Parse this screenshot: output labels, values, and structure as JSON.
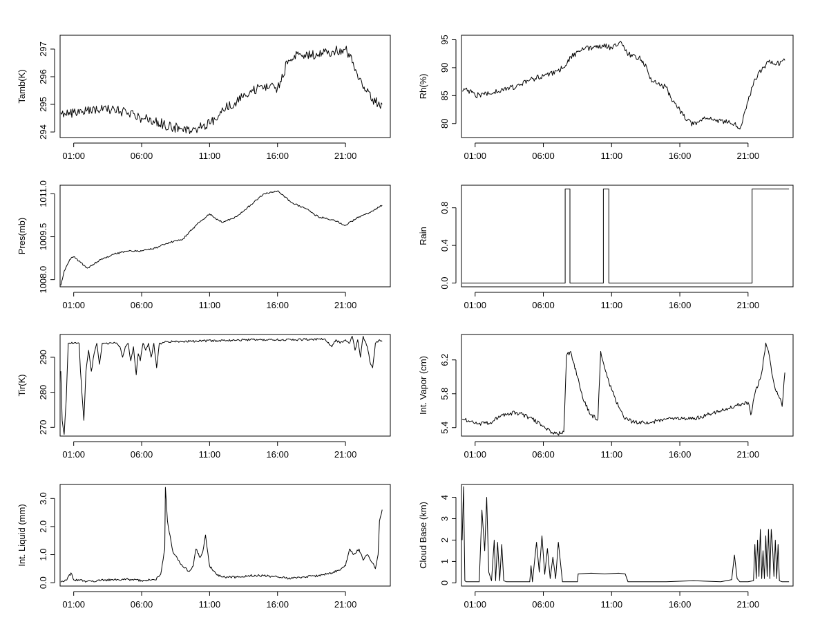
{
  "figure": {
    "background": "#ffffff",
    "line_color": "#000000"
  },
  "chart_data": [
    {
      "id": "tamb",
      "type": "line",
      "ylabel": "Tamb(K)",
      "xlabel": "",
      "yticks": [
        "294",
        "295",
        "296",
        "297"
      ],
      "ylim": [
        293.8,
        297.5
      ],
      "xticks": [
        "01:00",
        "06:00",
        "11:00",
        "16:00",
        "21:00"
      ],
      "xlim": [
        0,
        24.3
      ],
      "noise": 0.18,
      "seed": 3,
      "series": [
        {
          "name": "Tamb",
          "x": [
            0.05,
            1,
            2,
            3,
            4,
            5,
            6,
            7,
            8,
            9,
            10,
            11,
            12,
            13,
            14,
            15,
            16,
            16.8,
            17.5,
            18,
            19,
            20,
            21,
            21.5,
            22,
            22.5,
            23,
            23.4,
            23.7
          ],
          "y": [
            294.7,
            294.7,
            294.8,
            294.8,
            294.8,
            294.7,
            294.5,
            294.4,
            294.2,
            294.1,
            294.1,
            294.3,
            294.8,
            295.1,
            295.5,
            295.6,
            295.6,
            296.6,
            296.9,
            296.8,
            296.8,
            296.9,
            297.0,
            296.5,
            295.9,
            295.5,
            295.2,
            295.0,
            295.0
          ]
        }
      ]
    },
    {
      "id": "rh",
      "type": "line",
      "ylabel": "Rh(%)",
      "xlabel": "",
      "yticks": [
        "80",
        "85",
        "90",
        "95"
      ],
      "ylim": [
        77.5,
        95.8
      ],
      "xticks": [
        "01:00",
        "06:00",
        "11:00",
        "16:00",
        "21:00"
      ],
      "xlim": [
        0,
        24.3
      ],
      "noise": 0.5,
      "seed": 7,
      "series": [
        {
          "name": "Rh",
          "x": [
            0.05,
            0.5,
            1,
            2,
            3,
            4,
            5,
            6,
            7,
            7.5,
            8,
            9,
            10,
            11,
            11.6,
            12,
            12.5,
            13,
            13.3,
            14,
            15,
            15.5,
            16,
            16.5,
            17,
            18,
            19,
            20,
            20.4,
            21,
            21.5,
            22,
            22.5,
            23,
            23.5,
            23.7
          ],
          "y": [
            85.8,
            86.0,
            85.0,
            85.3,
            86.2,
            86.5,
            87.8,
            88.5,
            89.4,
            90.0,
            92.0,
            93.3,
            94.0,
            93.6,
            94.6,
            93.0,
            92.0,
            91.8,
            91.2,
            87.5,
            86.5,
            84.0,
            82.5,
            80.5,
            79.8,
            81.0,
            80.5,
            80.0,
            79.0,
            84.0,
            88.0,
            89.5,
            91.0,
            90.5,
            91.2,
            91.3
          ]
        }
      ]
    },
    {
      "id": "pres",
      "type": "line",
      "ylabel": "Pres(mb)",
      "xlabel": "",
      "yticks": [
        "1008.0",
        "1009.5",
        "1011.0"
      ],
      "ylim": [
        1007.75,
        1011.3
      ],
      "xticks": [
        "01:00",
        "06:00",
        "11:00",
        "16:00",
        "21:00"
      ],
      "xlim": [
        0,
        24.3
      ],
      "noise": 0.03,
      "seed": 11,
      "series": [
        {
          "name": "Pres",
          "x": [
            0.05,
            0.3,
            0.7,
            1,
            1.5,
            2,
            3,
            4,
            5,
            6,
            7,
            8,
            9,
            10,
            11,
            11.5,
            12,
            13,
            14,
            15,
            16,
            17,
            18,
            19,
            20,
            21,
            22,
            23,
            23.7
          ],
          "y": [
            1007.8,
            1008.3,
            1008.7,
            1008.8,
            1008.6,
            1008.4,
            1008.7,
            1008.9,
            1009.0,
            1009.0,
            1009.1,
            1009.3,
            1009.4,
            1009.9,
            1010.3,
            1010.1,
            1010.0,
            1010.2,
            1010.6,
            1011.0,
            1011.1,
            1010.7,
            1010.5,
            1010.2,
            1010.1,
            1009.9,
            1010.2,
            1010.4,
            1010.6
          ]
        }
      ]
    },
    {
      "id": "rain",
      "type": "line",
      "ylabel": "Rain",
      "xlabel": "",
      "yticks": [
        "0.0",
        "0.4",
        "0.8"
      ],
      "ylim": [
        -0.04,
        1.04
      ],
      "xticks": [
        "01:00",
        "06:00",
        "11:00",
        "16:00",
        "21:00"
      ],
      "xlim": [
        0,
        24.3
      ],
      "noise": 0,
      "seed": 1,
      "series": [
        {
          "name": "Rain",
          "x": [
            0.05,
            7.6,
            7.6,
            7.95,
            7.95,
            10.4,
            10.4,
            10.8,
            10.8,
            21.3,
            21.3,
            24.0
          ],
          "y": [
            0,
            0,
            1,
            1,
            0,
            0,
            1,
            1,
            0,
            0,
            1,
            1
          ]
        }
      ]
    },
    {
      "id": "tir",
      "type": "line",
      "ylabel": "Tir(K)",
      "xlabel": "",
      "yticks": [
        "270",
        "280",
        "290"
      ],
      "ylim": [
        267.5,
        296.5
      ],
      "xticks": [
        "01:00",
        "06:00",
        "11:00",
        "16:00",
        "21:00"
      ],
      "xlim": [
        0,
        24.3
      ],
      "noise": 0.3,
      "seed": 5,
      "series": [
        {
          "name": "Tir",
          "x": [
            0.05,
            0.15,
            0.3,
            0.45,
            0.6,
            1.4,
            1.5,
            1.6,
            1.75,
            1.9,
            2.1,
            2.3,
            2.5,
            2.7,
            2.9,
            3.1,
            3.3,
            3.6,
            4.1,
            4.4,
            4.6,
            4.8,
            5.0,
            5.2,
            5.4,
            5.6,
            5.75,
            5.9,
            6.1,
            6.3,
            6.5,
            6.7,
            6.9,
            7.1,
            7.3,
            7.5,
            7.8,
            9,
            12,
            14,
            17,
            19.5,
            20.0,
            20.3,
            20.6,
            21.0,
            21.3,
            21.5,
            21.7,
            21.9,
            22.1,
            22.3,
            22.6,
            22.85,
            23.0,
            23.2,
            23.5,
            23.7
          ],
          "y": [
            286,
            272,
            268,
            278,
            294,
            294,
            286,
            280,
            272,
            286,
            292,
            286,
            291,
            294,
            288,
            294,
            294,
            294,
            294,
            293,
            290,
            293,
            294,
            289,
            293,
            285,
            291,
            289,
            294,
            292,
            294,
            290,
            294,
            287,
            294,
            294,
            294.5,
            294.5,
            294.8,
            295,
            295,
            295.2,
            293,
            295,
            294,
            295,
            294,
            296,
            292,
            295,
            290,
            296,
            293,
            288,
            287,
            294,
            295,
            294.5
          ]
        }
      ]
    },
    {
      "id": "vapor",
      "type": "line",
      "ylabel": "Int. Vapor (cm)",
      "xlabel": "",
      "yticks": [
        "5.4",
        "5.8",
        "6.2"
      ],
      "ylim": [
        5.3,
        6.5
      ],
      "xticks": [
        "01:00",
        "06:00",
        "11:00",
        "16:00",
        "21:00"
      ],
      "xlim": [
        0,
        24.3
      ],
      "noise": 0.025,
      "seed": 9,
      "series": [
        {
          "name": "Int. Vapor",
          "x": [
            0.05,
            1,
            2,
            3,
            4,
            5,
            6,
            6.5,
            7,
            7.5,
            7.7,
            8.0,
            8.5,
            9,
            9.5,
            10.0,
            10.2,
            10.5,
            11.0,
            11.5,
            12,
            13,
            14,
            15,
            16,
            17,
            18,
            19,
            20,
            21,
            21.2,
            21.5,
            22,
            22.3,
            22.5,
            22.8,
            23,
            23.3,
            23.5,
            23.7
          ],
          "y": [
            5.5,
            5.45,
            5.45,
            5.55,
            5.58,
            5.52,
            5.42,
            5.36,
            5.33,
            5.35,
            6.25,
            6.3,
            6.0,
            5.7,
            5.55,
            5.5,
            6.3,
            6.1,
            5.85,
            5.65,
            5.5,
            5.45,
            5.47,
            5.5,
            5.5,
            5.5,
            5.55,
            5.6,
            5.65,
            5.7,
            5.55,
            5.8,
            6.05,
            6.4,
            6.3,
            6.0,
            5.85,
            5.75,
            5.65,
            6.05
          ]
        }
      ]
    },
    {
      "id": "liquid",
      "type": "line",
      "ylabel": "Int. Liquid (mm)",
      "xlabel": "",
      "yticks": [
        "0.0",
        "1.0",
        "2.0",
        "3.0"
      ],
      "ylim": [
        -0.12,
        3.5
      ],
      "xticks": [
        "01:00",
        "06:00",
        "11:00",
        "16:00",
        "21:00"
      ],
      "xlim": [
        0,
        24.3
      ],
      "noise": 0.04,
      "seed": 13,
      "series": [
        {
          "name": "Int. Liquid",
          "x": [
            0.05,
            0.5,
            0.8,
            1,
            2,
            3,
            4,
            5,
            6,
            7,
            7.4,
            7.7,
            7.75,
            7.9,
            8.3,
            9,
            9.5,
            9.8,
            10.0,
            10.3,
            10.5,
            10.7,
            11.0,
            11.5,
            12,
            13,
            14,
            15,
            16,
            17,
            18,
            19,
            20,
            20.5,
            21,
            21.3,
            21.6,
            22,
            22.3,
            22.6,
            23,
            23.2,
            23.4,
            23.5,
            23.7
          ],
          "y": [
            0.02,
            0.1,
            0.35,
            0.1,
            0.05,
            0.08,
            0.12,
            0.12,
            0.08,
            0.1,
            0.3,
            1.2,
            3.4,
            2.2,
            1.1,
            0.6,
            0.4,
            0.6,
            1.2,
            0.9,
            1.1,
            1.7,
            0.6,
            0.3,
            0.2,
            0.2,
            0.25,
            0.25,
            0.2,
            0.15,
            0.2,
            0.25,
            0.35,
            0.45,
            0.6,
            1.2,
            1.0,
            1.2,
            0.8,
            1.0,
            0.7,
            0.5,
            1.0,
            2.2,
            2.6
          ]
        }
      ]
    },
    {
      "id": "cloudbase",
      "type": "line",
      "ylabel": "Cloud Base (km)",
      "xlabel": "",
      "yticks": [
        "0",
        "1",
        "2",
        "3",
        "4"
      ],
      "ylim": [
        -0.15,
        4.6
      ],
      "xticks": [
        "01:00",
        "06:00",
        "11:00",
        "16:00",
        "21:00"
      ],
      "xlim": [
        0,
        24.3
      ],
      "noise": 0,
      "seed": 2,
      "series": [
        {
          "name": "Cloud Base",
          "x": [
            0.05,
            0.15,
            0.25,
            0.35,
            1.3,
            1.5,
            1.7,
            1.85,
            2.0,
            2.2,
            2.4,
            2.5,
            2.65,
            2.8,
            2.95,
            3.1,
            3.3,
            5.0,
            5.1,
            5.2,
            5.5,
            5.7,
            5.9,
            6.1,
            6.3,
            6.5,
            6.7,
            6.9,
            7.1,
            7.4,
            7.5,
            8.5,
            8.55,
            9.5,
            10.5,
            11.5,
            12,
            12.2,
            12.3,
            13,
            15,
            17,
            19,
            19.8,
            20.0,
            20.2,
            20.4,
            21,
            21.4,
            21.5,
            21.6,
            21.7,
            21.8,
            21.9,
            22.0,
            22.1,
            22.2,
            22.3,
            22.4,
            22.5,
            22.6,
            22.7,
            22.8,
            22.9,
            23.0,
            23.1,
            23.2,
            23.3,
            23.5,
            24.0
          ],
          "y": [
            2.0,
            4.5,
            0.1,
            0.05,
            0.05,
            3.4,
            1.5,
            4.0,
            0.5,
            0.1,
            2.0,
            0.1,
            1.9,
            0.1,
            1.8,
            0.1,
            0.05,
            0.05,
            0.8,
            0.05,
            1.9,
            0.5,
            2.2,
            0.4,
            1.6,
            0.2,
            1.2,
            0.2,
            1.9,
            0.05,
            0.05,
            0.05,
            0.42,
            0.45,
            0.42,
            0.45,
            0.42,
            0.05,
            0.05,
            0.05,
            0.05,
            0.1,
            0.05,
            0.15,
            1.3,
            0.2,
            0.05,
            0.05,
            0.1,
            1.8,
            0.2,
            2.0,
            0.3,
            2.5,
            0.2,
            1.5,
            0.2,
            2.2,
            0.3,
            2.5,
            0.2,
            2.5,
            1.6,
            0.3,
            2.0,
            0.2,
            1.8,
            0.1,
            0.05,
            0.05
          ]
        }
      ]
    }
  ]
}
